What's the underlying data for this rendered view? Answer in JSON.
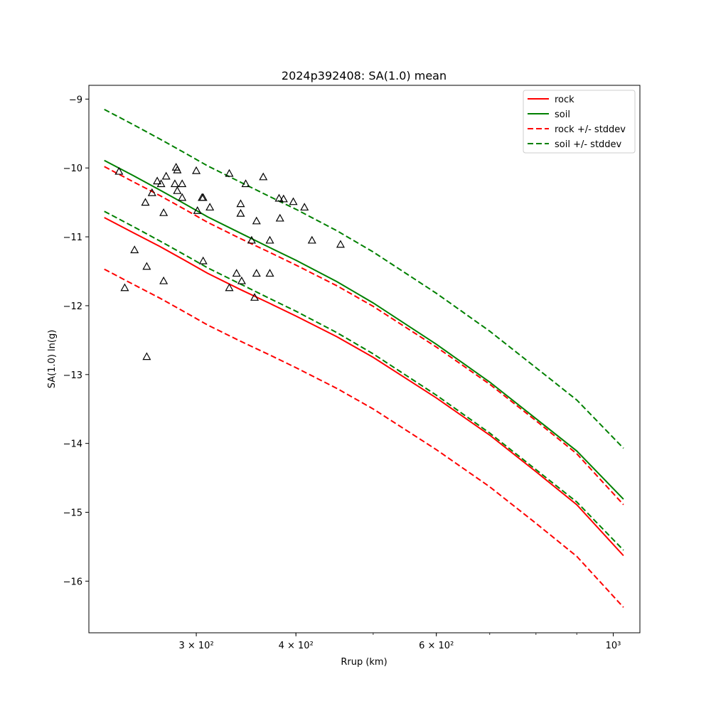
{
  "chart_data": {
    "type": "line",
    "title": "2024p392408: SA(1.0) mean",
    "xlabel": "Rrup (km)",
    "ylabel": "SA(1.0) ln(g)",
    "xscale": "log",
    "xlim": [
      220,
      1080
    ],
    "ylim": [
      -16.75,
      -8.8
    ],
    "xticks": [
      {
        "value": 300,
        "label": "3 × 10²"
      },
      {
        "value": 400,
        "label": "4 × 10²"
      },
      {
        "value": 600,
        "label": "6 × 10²"
      },
      {
        "value": 1000,
        "label": "10³"
      }
    ],
    "yticks": [
      -16,
      -15,
      -14,
      -13,
      -12,
      -11,
      -10,
      -9
    ],
    "grid": false,
    "legend_position": "top-right",
    "series": [
      {
        "name": "rock",
        "color": "#ff0000",
        "style": "solid",
        "x": [
          230,
          250,
          270,
          290,
          310,
          340,
          370,
          400,
          450,
          500,
          600,
          700,
          800,
          900,
          1030
        ],
        "y": [
          -10.72,
          -10.94,
          -11.14,
          -11.34,
          -11.53,
          -11.76,
          -11.96,
          -12.15,
          -12.45,
          -12.75,
          -13.34,
          -13.88,
          -14.41,
          -14.89,
          -15.63
        ]
      },
      {
        "name": "soil",
        "color": "#008000",
        "style": "solid",
        "x": [
          230,
          250,
          270,
          290,
          310,
          340,
          370,
          400,
          450,
          500,
          600,
          700,
          800,
          900,
          1030
        ],
        "y": [
          -9.89,
          -10.11,
          -10.32,
          -10.52,
          -10.71,
          -10.94,
          -11.15,
          -11.34,
          -11.65,
          -11.96,
          -12.56,
          -13.11,
          -13.64,
          -14.11,
          -14.81
        ]
      },
      {
        "name": "rock +/- stddev",
        "color": "#ff0000",
        "style": "dashed",
        "x": [
          230,
          250,
          270,
          290,
          310,
          340,
          370,
          400,
          450,
          500,
          600,
          700,
          800,
          900,
          1030
        ],
        "y": [
          -9.98,
          -10.2,
          -10.4,
          -10.6,
          -10.79,
          -11.02,
          -11.22,
          -11.41,
          -11.71,
          -12.01,
          -12.6,
          -13.14,
          -13.67,
          -14.15,
          -14.89
        ],
        "y2": [
          -11.47,
          -11.69,
          -11.89,
          -12.09,
          -12.28,
          -12.51,
          -12.71,
          -12.9,
          -13.2,
          -13.5,
          -14.09,
          -14.63,
          -15.16,
          -15.64,
          -16.38
        ]
      },
      {
        "name": "soil +/- stddev",
        "color": "#008000",
        "style": "dashed",
        "x": [
          230,
          250,
          270,
          290,
          310,
          340,
          370,
          400,
          450,
          500,
          600,
          700,
          800,
          900,
          1030
        ],
        "y": [
          -9.15,
          -9.37,
          -9.58,
          -9.78,
          -9.97,
          -10.2,
          -10.41,
          -10.6,
          -10.91,
          -11.22,
          -11.82,
          -12.37,
          -12.9,
          -13.37,
          -14.07
        ],
        "y2": [
          -10.63,
          -10.85,
          -11.06,
          -11.26,
          -11.45,
          -11.68,
          -11.89,
          -12.08,
          -12.39,
          -12.7,
          -13.3,
          -13.85,
          -14.38,
          -14.85,
          -15.55
        ]
      }
    ],
    "observations": {
      "marker": "triangle",
      "points": [
        [
          240,
          -10.05
        ],
        [
          244,
          -11.74
        ],
        [
          251,
          -11.19
        ],
        [
          259,
          -10.5
        ],
        [
          260,
          -11.43
        ],
        [
          260,
          -12.74
        ],
        [
          264,
          -10.36
        ],
        [
          268,
          -10.19
        ],
        [
          271,
          -10.23
        ],
        [
          273,
          -10.65
        ],
        [
          273,
          -11.64
        ],
        [
          275,
          -10.12
        ],
        [
          283,
          -9.99
        ],
        [
          282,
          -10.23
        ],
        [
          284,
          -10.03
        ],
        [
          284,
          -10.33
        ],
        [
          288,
          -10.23
        ],
        [
          288,
          -10.43
        ],
        [
          300,
          -10.04
        ],
        [
          301,
          -10.62
        ],
        [
          305,
          -10.43
        ],
        [
          306,
          -10.43
        ],
        [
          306,
          -11.35
        ],
        [
          312,
          -10.57
        ],
        [
          330,
          -10.08
        ],
        [
          330,
          -11.74
        ],
        [
          337,
          -11.53
        ],
        [
          341,
          -10.52
        ],
        [
          341,
          -10.66
        ],
        [
          342,
          -11.64
        ],
        [
          346,
          -10.23
        ],
        [
          352,
          -11.05
        ],
        [
          355,
          -11.88
        ],
        [
          357,
          -10.77
        ],
        [
          357,
          -11.53
        ],
        [
          364,
          -10.13
        ],
        [
          371,
          -11.05
        ],
        [
          371,
          -11.53
        ],
        [
          381,
          -10.44
        ],
        [
          382,
          -10.73
        ],
        [
          386,
          -10.45
        ],
        [
          397,
          -10.49
        ],
        [
          410,
          -10.57
        ],
        [
          419,
          -11.05
        ],
        [
          455,
          -11.11
        ]
      ]
    }
  }
}
